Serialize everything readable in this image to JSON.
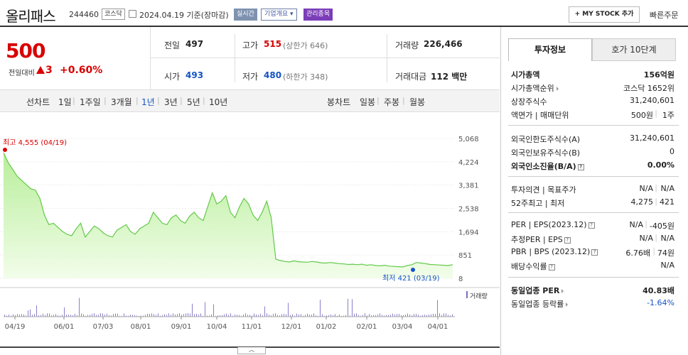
{
  "header": {
    "name": "올리패스",
    "code": "244460",
    "market": "코스닥",
    "date": "2024.04.19  기준(장마감)",
    "realtime": "실시간",
    "corp_info": "기업개요 ▾",
    "mgmt": "관리종목",
    "my_stock": "+ MY STOCK 추가",
    "quick_order": "빠른주문"
  },
  "price": {
    "current": "500",
    "change_label": "전일대비",
    "change_value": "3",
    "change_pct": "+0.60%"
  },
  "stats": {
    "prev_label": "전일",
    "prev": "497",
    "high_label": "고가",
    "high": "515",
    "upper": "(상한가 646)",
    "volume_label": "거래량",
    "volume": "226,466",
    "open_label": "시가",
    "open": "493",
    "low_label": "저가",
    "low": "480",
    "lower": "(하한가 348)",
    "amount_label": "거래대금",
    "amount": "112 백만"
  },
  "periods": {
    "line": "선차트",
    "d1": "1일",
    "w1": "1주일",
    "m3": "3개월",
    "y1": "1년",
    "y3": "3년",
    "y5": "5년",
    "y10": "10년",
    "candle": "봉차트",
    "daily": "일봉",
    "weekly": "주봉",
    "monthly": "월봉"
  },
  "chart": {
    "high_label": "최고 4,555 (04/19)",
    "low_label": "최저  421 (03/19)",
    "volume_label": "거래량",
    "y_ticks": [
      "5,068",
      "4,224",
      "3,381",
      "2,538",
      "1,694",
      "851",
      "8"
    ],
    "x_ticks": [
      "04/19",
      "06/01",
      "07/03",
      "08/01",
      "09/01",
      "10/04",
      "11/01",
      "12/01",
      "01/02",
      "02/01",
      "03/04",
      "04/01"
    ]
  },
  "chart_data": {
    "type": "area",
    "x_range": [
      "2023-04-19",
      "2024-04-19"
    ],
    "ylim": [
      8,
      5068
    ],
    "yticks": [
      5068,
      4224,
      3381,
      2538,
      1694,
      851,
      8
    ],
    "series": [
      {
        "values": [
          4555,
          4200,
          3950,
          3700,
          3550,
          3400,
          3250,
          3200,
          2900,
          2300,
          1950,
          2000,
          1850,
          1700,
          1600,
          1550,
          1800,
          2000,
          1500,
          1700,
          1900,
          1800,
          1650,
          1550,
          1500,
          1750,
          1850,
          1950,
          1700,
          1600,
          1800,
          1900,
          2000,
          2400,
          2200,
          2000,
          1950,
          2200,
          2300,
          2100,
          2000,
          2250,
          2400,
          2200,
          2100,
          2600,
          3100,
          2700,
          2800,
          3000,
          2400,
          2200,
          2600,
          2900,
          2700,
          2300,
          2100,
          2400,
          2800,
          2200,
          700,
          650,
          620,
          600,
          640,
          610,
          600,
          590,
          620,
          600,
          570,
          560,
          580,
          560,
          540,
          530,
          510,
          520,
          500,
          520,
          480,
          500,
          470,
          460,
          480,
          450,
          440,
          430,
          421,
          470,
          500,
          580,
          560,
          540,
          510,
          500,
          490,
          480,
          470,
          500
        ]
      }
    ],
    "annotations": [
      "최고 4,555 (04/19)",
      "최저 421 (03/19)"
    ],
    "volume_label": "거래량"
  },
  "panel": {
    "tab_invest": "투자정보",
    "tab_hoga": "호가 10단계",
    "mcap_label": "시가총액",
    "mcap": "156억원",
    "rank_label": "시가총액순위",
    "rank": "코스닥 1652위",
    "shares_label": "상장주식수",
    "shares": "31,240,601",
    "par_label": "액면가 | 매매단위",
    "par": "500원",
    "unit": "1주",
    "foreign_limit_label": "외국인한도주식수(A)",
    "foreign_limit": "31,240,601",
    "foreign_hold_label": "외국인보유주식수(B)",
    "foreign_hold": "0",
    "foreign_ratio_label": "외국인소진율(B/A)",
    "foreign_ratio": "0.00%",
    "opinion_label": "투자의견 | 목표주가",
    "opinion": "N/A",
    "target": "N/A",
    "w52_label": "52주최고 | 최저",
    "w52_high": "4,275",
    "w52_low": "421",
    "per_label": "PER | EPS(2023.12)",
    "per": "N/A",
    "eps": "-405원",
    "est_label": "추정PER | EPS",
    "est_per": "N/A",
    "est_eps": "N/A",
    "pbr_label": "PBR | BPS (2023.12)",
    "pbr": "6.76배",
    "bps": "74원",
    "div_label": "배당수익률",
    "div": "N/A",
    "ind_per_label": "동일업종 PER",
    "ind_per": "40.83배",
    "ind_rate_label": "동일업종 등락률",
    "ind_rate": "-1.64%"
  }
}
